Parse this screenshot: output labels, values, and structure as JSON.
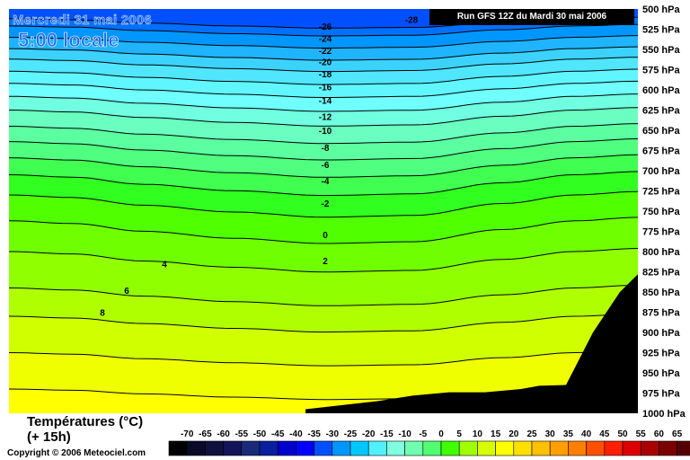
{
  "header": {
    "date": "Mercredi 31 mai 2006",
    "time": "5:00 locale",
    "run": "Run GFS 12Z du Mardi 30 mai 2006"
  },
  "footer": {
    "title": "Températures (°C)",
    "subtitle": "(+ 15h)",
    "copyright": "Copyright © 2006 Meteociel.com"
  },
  "chart_data": {
    "type": "heatmap",
    "title": "Températures (°C)",
    "y_axis": {
      "unit": "hPa",
      "ticks": [
        500,
        525,
        550,
        575,
        600,
        625,
        650,
        675,
        700,
        725,
        750,
        775,
        800,
        825,
        850,
        875,
        900,
        925,
        950,
        975,
        1000
      ],
      "tick_labels": [
        "500 hPa",
        "525 hPa",
        "550 hPa",
        "575 hPa",
        "600 hPa",
        "625 hPa",
        "650 hPa",
        "675 hPa",
        "700 hPa",
        "725 hPa",
        "750 hPa",
        "775 hPa",
        "800 hPa",
        "825 hPa",
        "850 hPa",
        "875 hPa",
        "900 hPa",
        "925 hPa",
        "950 hPa",
        "975 hPa",
        "1000 hPa"
      ],
      "range": [
        500,
        1000
      ]
    },
    "contour_labels": [
      {
        "value": "-28",
        "p": 513
      },
      {
        "value": "-26",
        "p": 521
      },
      {
        "value": "-24",
        "p": 536
      },
      {
        "value": "-22",
        "p": 551
      },
      {
        "value": "-20",
        "p": 565
      },
      {
        "value": "-18",
        "p": 580
      },
      {
        "value": "-16",
        "p": 596
      },
      {
        "value": "-14",
        "p": 613
      },
      {
        "value": "-12",
        "p": 633
      },
      {
        "value": "-10",
        "p": 650
      },
      {
        "value": "-8",
        "p": 671
      },
      {
        "value": "-6",
        "p": 692
      },
      {
        "value": "-4",
        "p": 712
      },
      {
        "value": "-2",
        "p": 740
      },
      {
        "value": "0",
        "p": 779
      },
      {
        "value": "2",
        "p": 811
      },
      {
        "value": "4",
        "p": 815
      },
      {
        "value": "6",
        "p": 848
      },
      {
        "value": "8",
        "p": 875
      }
    ],
    "legend": {
      "values": [
        "-70",
        "-65",
        "-60",
        "-55",
        "-50",
        "-45",
        "-40",
        "-35",
        "-30",
        "-25",
        "-20",
        "-15",
        "-10",
        "-5",
        "0",
        "5",
        "10",
        "15",
        "20",
        "25",
        "30",
        "35",
        "40",
        "45",
        "50",
        "55",
        "60",
        "65"
      ],
      "colors": [
        "#000000",
        "#0a0a28",
        "#101040",
        "#14145a",
        "#1a2a78",
        "#0a1ea0",
        "#0000cd",
        "#0000ff",
        "#0050ff",
        "#0096ff",
        "#00c8ff",
        "#50f0ff",
        "#80ffe0",
        "#70ffb0",
        "#50ff70",
        "#40ff00",
        "#a0ff00",
        "#d8ff00",
        "#ffff00",
        "#ffe000",
        "#ffc000",
        "#ffa000",
        "#ff8000",
        "#ff5000",
        "#ff2000",
        "#dd0000",
        "#aa0000",
        "#7a0000",
        "#550000"
      ]
    }
  }
}
